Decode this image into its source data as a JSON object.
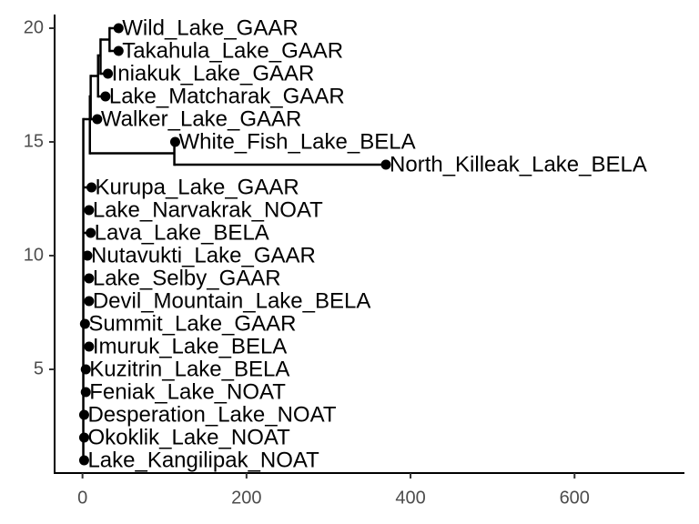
{
  "chart_data": {
    "type": "tree",
    "xlim": [
      -34,
      734
    ],
    "ylim": [
      0.44,
      20.6
    ],
    "xticks": [
      0,
      200,
      400,
      600
    ],
    "yticks": [
      5,
      10,
      15,
      20
    ],
    "nodes": [
      {
        "x": 1,
        "y": 8,
        "parent": null
      },
      {
        "x": 9,
        "y": 16,
        "parent": 0
      },
      {
        "x": 10,
        "y": 17,
        "parent": 1
      },
      {
        "x": 19,
        "y": 17.9,
        "parent": 2
      },
      {
        "x": 22,
        "y": 18.8,
        "parent": 3
      },
      {
        "x": 33,
        "y": 19.5,
        "parent": 4
      },
      {
        "x": 112,
        "y": 14.5,
        "parent": 1
      }
    ],
    "tips": [
      {
        "label": "Wild_Lake_GAAR",
        "x": 44,
        "y": 20,
        "parent": 5
      },
      {
        "label": "Takahula_Lake_GAAR",
        "x": 44,
        "y": 19,
        "parent": 5
      },
      {
        "label": "Iniakuk_Lake_GAAR",
        "x": 31,
        "y": 18,
        "parent": 4
      },
      {
        "label": "Lake_Matcharak_GAAR",
        "x": 28,
        "y": 17,
        "parent": 3
      },
      {
        "label": "Walker_Lake_GAAR",
        "x": 18,
        "y": 16,
        "parent": 2
      },
      {
        "label": "White_Fish_Lake_BELA",
        "x": 113,
        "y": 15,
        "parent": 6
      },
      {
        "label": "North_Killeak_Lake_BELA",
        "x": 370,
        "y": 14,
        "parent": 6
      },
      {
        "label": "Kurupa_Lake_GAAR",
        "x": 11,
        "y": 13,
        "parent": 0
      },
      {
        "label": "Lake_Narvakrak_NOAT",
        "x": 8,
        "y": 12,
        "parent": 0
      },
      {
        "label": "Lava_Lake_BELA",
        "x": 10,
        "y": 11,
        "parent": 0
      },
      {
        "label": "Nutavukti_Lake_GAAR",
        "x": 6,
        "y": 10,
        "parent": 0
      },
      {
        "label": "Lake_Selby_GAAR",
        "x": 8,
        "y": 9,
        "parent": 0
      },
      {
        "label": "Devil_Mountain_Lake_BELA",
        "x": 8,
        "y": 8,
        "parent": 0
      },
      {
        "label": "Summit_Lake_GAAR",
        "x": 3,
        "y": 7,
        "parent": 0
      },
      {
        "label": "Imuruk_Lake_BELA",
        "x": 8,
        "y": 6,
        "parent": 0
      },
      {
        "label": "Kuzitrin_Lake_BELA",
        "x": 4,
        "y": 5,
        "parent": 0
      },
      {
        "label": "Feniak_Lake_NOAT",
        "x": 4,
        "y": 4,
        "parent": 0
      },
      {
        "label": "Desperation_Lake_NOAT",
        "x": 2,
        "y": 3,
        "parent": 0
      },
      {
        "label": "Okoklik_Lake_NOAT",
        "x": 2,
        "y": 2,
        "parent": 0
      },
      {
        "label": "Lake_Kangilipak_NOAT",
        "x": 2,
        "y": 1,
        "parent": 0
      }
    ]
  }
}
